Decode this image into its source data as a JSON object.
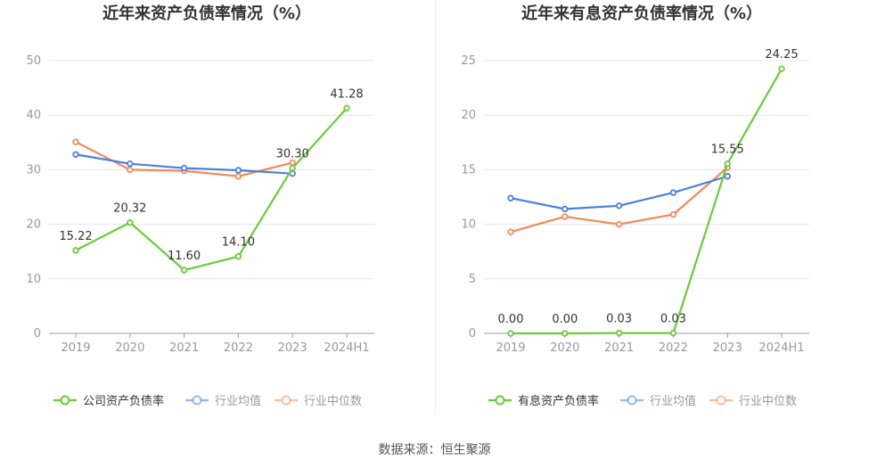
{
  "chart_data": [
    {
      "type": "line",
      "title": "近年来资产负债率情况（%）",
      "categories": [
        "2019",
        "2020",
        "2021",
        "2022",
        "2023",
        "2024H1"
      ],
      "ylim": [
        0,
        50
      ],
      "yticks": [
        0,
        10,
        20,
        30,
        40,
        50
      ],
      "grid": true,
      "legend_position": "bottom",
      "series": [
        {
          "name": "公司资产负债率",
          "color": "#6bcb3a",
          "values": [
            15.22,
            20.32,
            11.6,
            14.1,
            30.3,
            41.28
          ],
          "labels": [
            "15.22",
            "20.32",
            "11.60",
            "14.10",
            "30.30",
            "41.28"
          ]
        },
        {
          "name": "行业均值",
          "color": "#4a7fe0",
          "values": [
            32.8,
            31.1,
            30.3,
            29.9,
            29.3,
            null
          ]
        },
        {
          "name": "行业中位数",
          "color": "#f28a5c",
          "values": [
            35.1,
            30.0,
            29.8,
            28.8,
            31.3,
            null
          ]
        }
      ]
    },
    {
      "type": "line",
      "title": "近年来有息资产负债率情况（%）",
      "categories": [
        "2019",
        "2020",
        "2021",
        "2022",
        "2023",
        "2024H1"
      ],
      "ylim": [
        0,
        25
      ],
      "yticks": [
        0,
        5,
        10,
        15,
        20,
        25
      ],
      "grid": true,
      "legend_position": "bottom",
      "series": [
        {
          "name": "有息资产负债率",
          "color": "#6bcb3a",
          "values": [
            0.0,
            0.0,
            0.03,
            0.03,
            15.55,
            24.25
          ],
          "labels": [
            "0.00",
            "0.00",
            "0.03",
            "0.03",
            "15.55",
            "24.25"
          ]
        },
        {
          "name": "行业均值",
          "color": "#4a7fe0",
          "values": [
            12.4,
            11.4,
            11.7,
            12.9,
            14.4,
            null
          ]
        },
        {
          "name": "行业中位数",
          "color": "#f28a5c",
          "values": [
            9.3,
            10.7,
            10.0,
            10.9,
            15.2,
            null
          ]
        }
      ]
    }
  ],
  "source_text": "数据来源：恒生聚源"
}
